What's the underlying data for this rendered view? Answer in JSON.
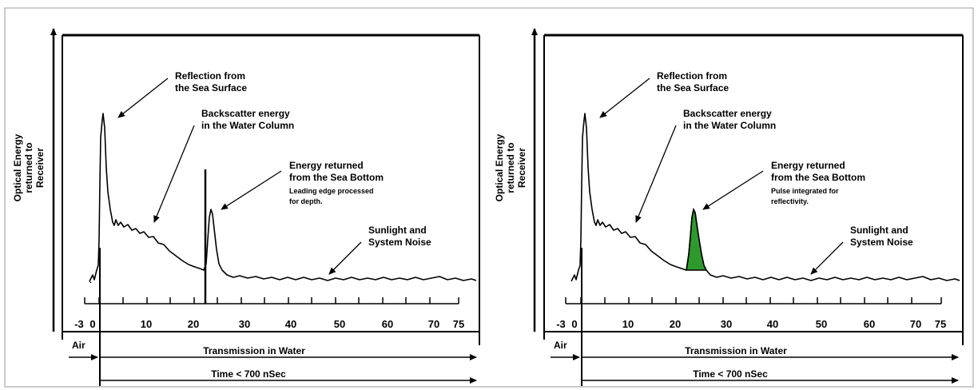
{
  "colors": {
    "line": "#000000",
    "fill": "#2e9a2e",
    "border": "#999999"
  },
  "panels": [
    {
      "id": "left",
      "y_label": [
        "Optical Energy",
        "returned to",
        "Receiver"
      ],
      "ticks": [
        "-3",
        "0",
        "10",
        "20",
        "30",
        "40",
        "50",
        "60",
        "70",
        "75"
      ],
      "annotations": {
        "surface": [
          "Reflection from",
          "the Sea Surface"
        ],
        "backscatter": [
          "Backscatter energy",
          "in the Water Column"
        ],
        "bottom": [
          "Energy returned",
          "from the Sea Bottom"
        ],
        "bottom_note": [
          "Leading edge processed",
          "for depth."
        ],
        "noise": [
          "Sunlight and",
          "System Noise"
        ]
      },
      "air_label": "Air",
      "transmission_label": "Transmission in Water",
      "time_label": "Time < 700 nSec",
      "highlight": "leading-edge-marker"
    },
    {
      "id": "right",
      "y_label": [
        "Optical Energy",
        "returned to",
        "Receiver"
      ],
      "ticks": [
        "-3",
        "0",
        "10",
        "20",
        "30",
        "40",
        "50",
        "60",
        "70",
        "75"
      ],
      "annotations": {
        "surface": [
          "Reflection from",
          "the Sea Surface"
        ],
        "backscatter": [
          "Backscatter energy",
          "in the Water Column"
        ],
        "bottom": [
          "Energy returned",
          "from the Sea Bottom"
        ],
        "bottom_note": [
          "Pulse integrated for",
          "reflectivity."
        ],
        "noise": [
          "Sunlight and",
          "System Noise"
        ]
      },
      "air_label": "Air",
      "transmission_label": "Transmission in Water",
      "time_label": "Time < 700 nSec",
      "highlight": "integrated-pulse-fill"
    }
  ]
}
